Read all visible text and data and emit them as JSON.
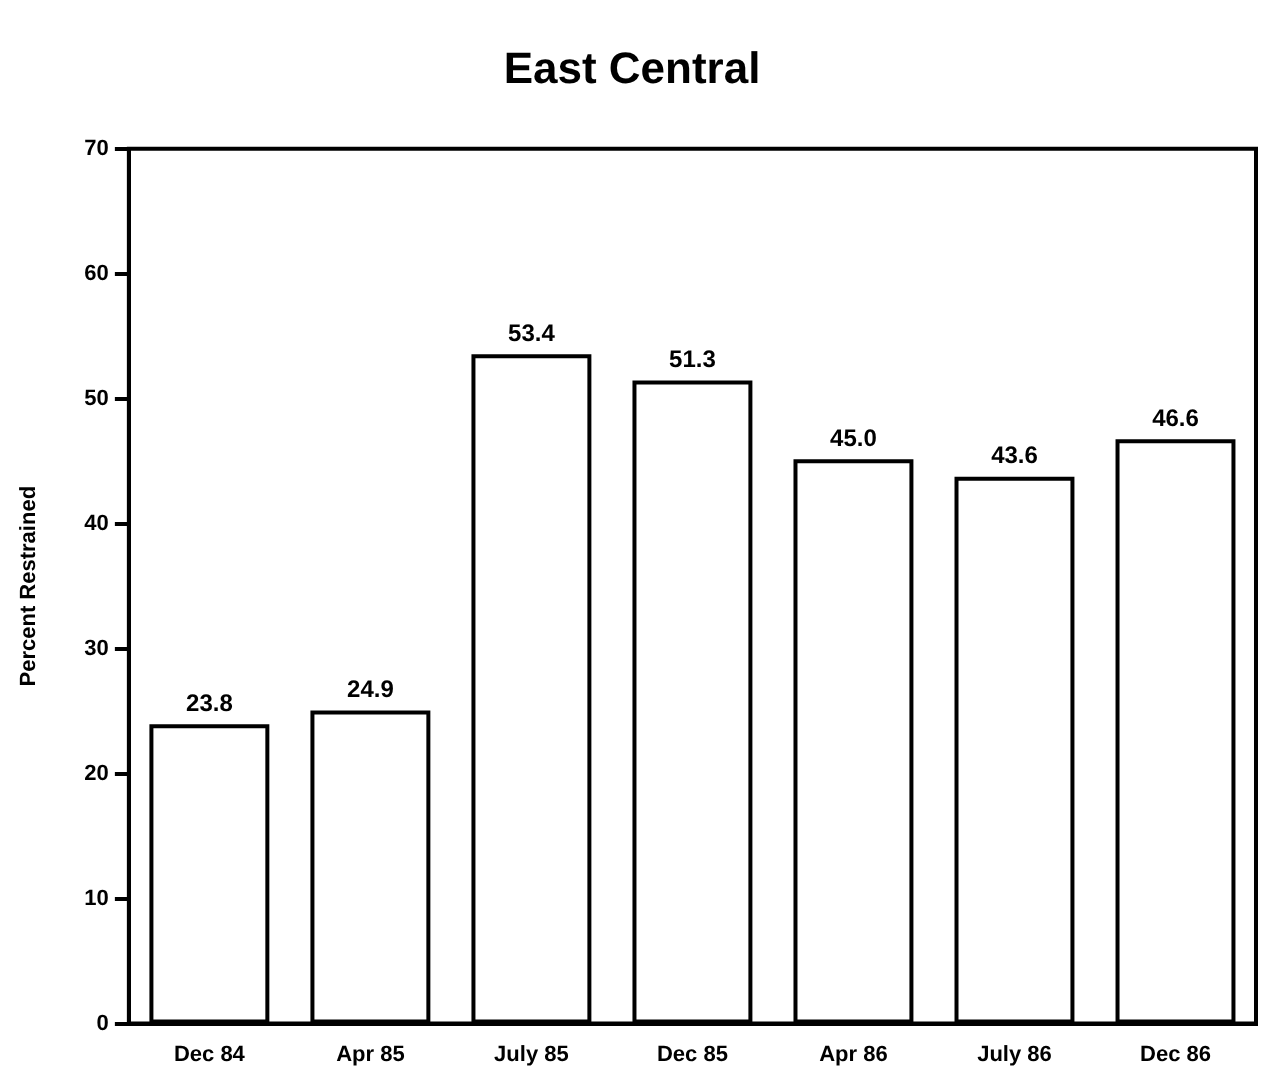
{
  "chart_data": {
    "type": "bar",
    "title": "East Central",
    "ylabel": "Percent Restrained",
    "categories": [
      "Dec 84",
      "Apr 85",
      "July 85",
      "Dec 85",
      "Apr 86",
      "July 86",
      "Dec 86"
    ],
    "values": [
      23.8,
      24.9,
      53.4,
      51.3,
      45.0,
      43.6,
      46.6
    ],
    "value_labels": [
      "23.8",
      "24.9",
      "53.4",
      "51.3",
      "45.0",
      "43.6",
      "46.6"
    ],
    "color": "#ffffff",
    "ylim": [
      0,
      70
    ],
    "yticks": [
      0,
      10,
      20,
      30,
      40,
      50,
      60,
      70
    ],
    "grid": false,
    "legend": false
  }
}
